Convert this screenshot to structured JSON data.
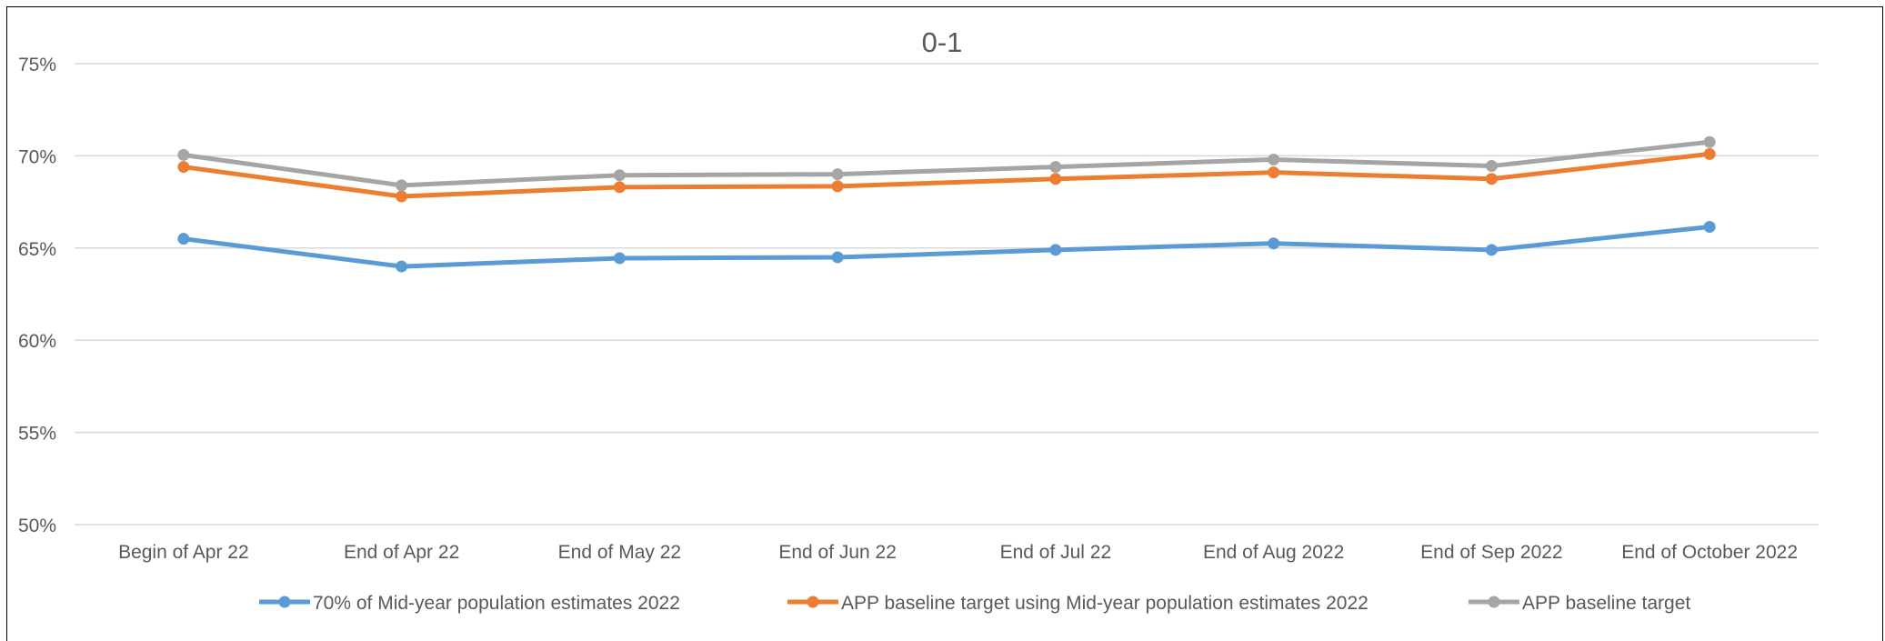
{
  "chart_data": {
    "type": "line",
    "title": "0-1",
    "xlabel": "",
    "ylabel": "",
    "categories": [
      "Begin of Apr 22",
      "End of Apr 22",
      "End of May 22",
      "End of Jun 22",
      "End of Jul 22",
      "End of Aug 2022",
      "End of Sep 2022",
      "End of October 2022"
    ],
    "y_ticks": [
      "50%",
      "55%",
      "60%",
      "65%",
      "70%",
      "75%"
    ],
    "ylim": [
      50,
      75
    ],
    "y_unit": "%",
    "grid": true,
    "legend_position": "bottom",
    "series": [
      {
        "name": "70% of Mid-year population estimates 2022",
        "color": "#5B9BD5",
        "values": [
          65.5,
          64.0,
          64.45,
          64.5,
          64.9,
          65.25,
          64.9,
          66.15
        ]
      },
      {
        "name": "APP baseline target using Mid-year population estimates 2022",
        "color": "#ED7D31",
        "values": [
          69.4,
          67.8,
          68.3,
          68.35,
          68.75,
          69.1,
          68.75,
          70.1
        ]
      },
      {
        "name": "APP baseline target",
        "color": "#A5A5A5",
        "values": [
          70.05,
          68.4,
          68.95,
          69.0,
          69.4,
          69.8,
          69.45,
          70.75
        ]
      }
    ]
  }
}
